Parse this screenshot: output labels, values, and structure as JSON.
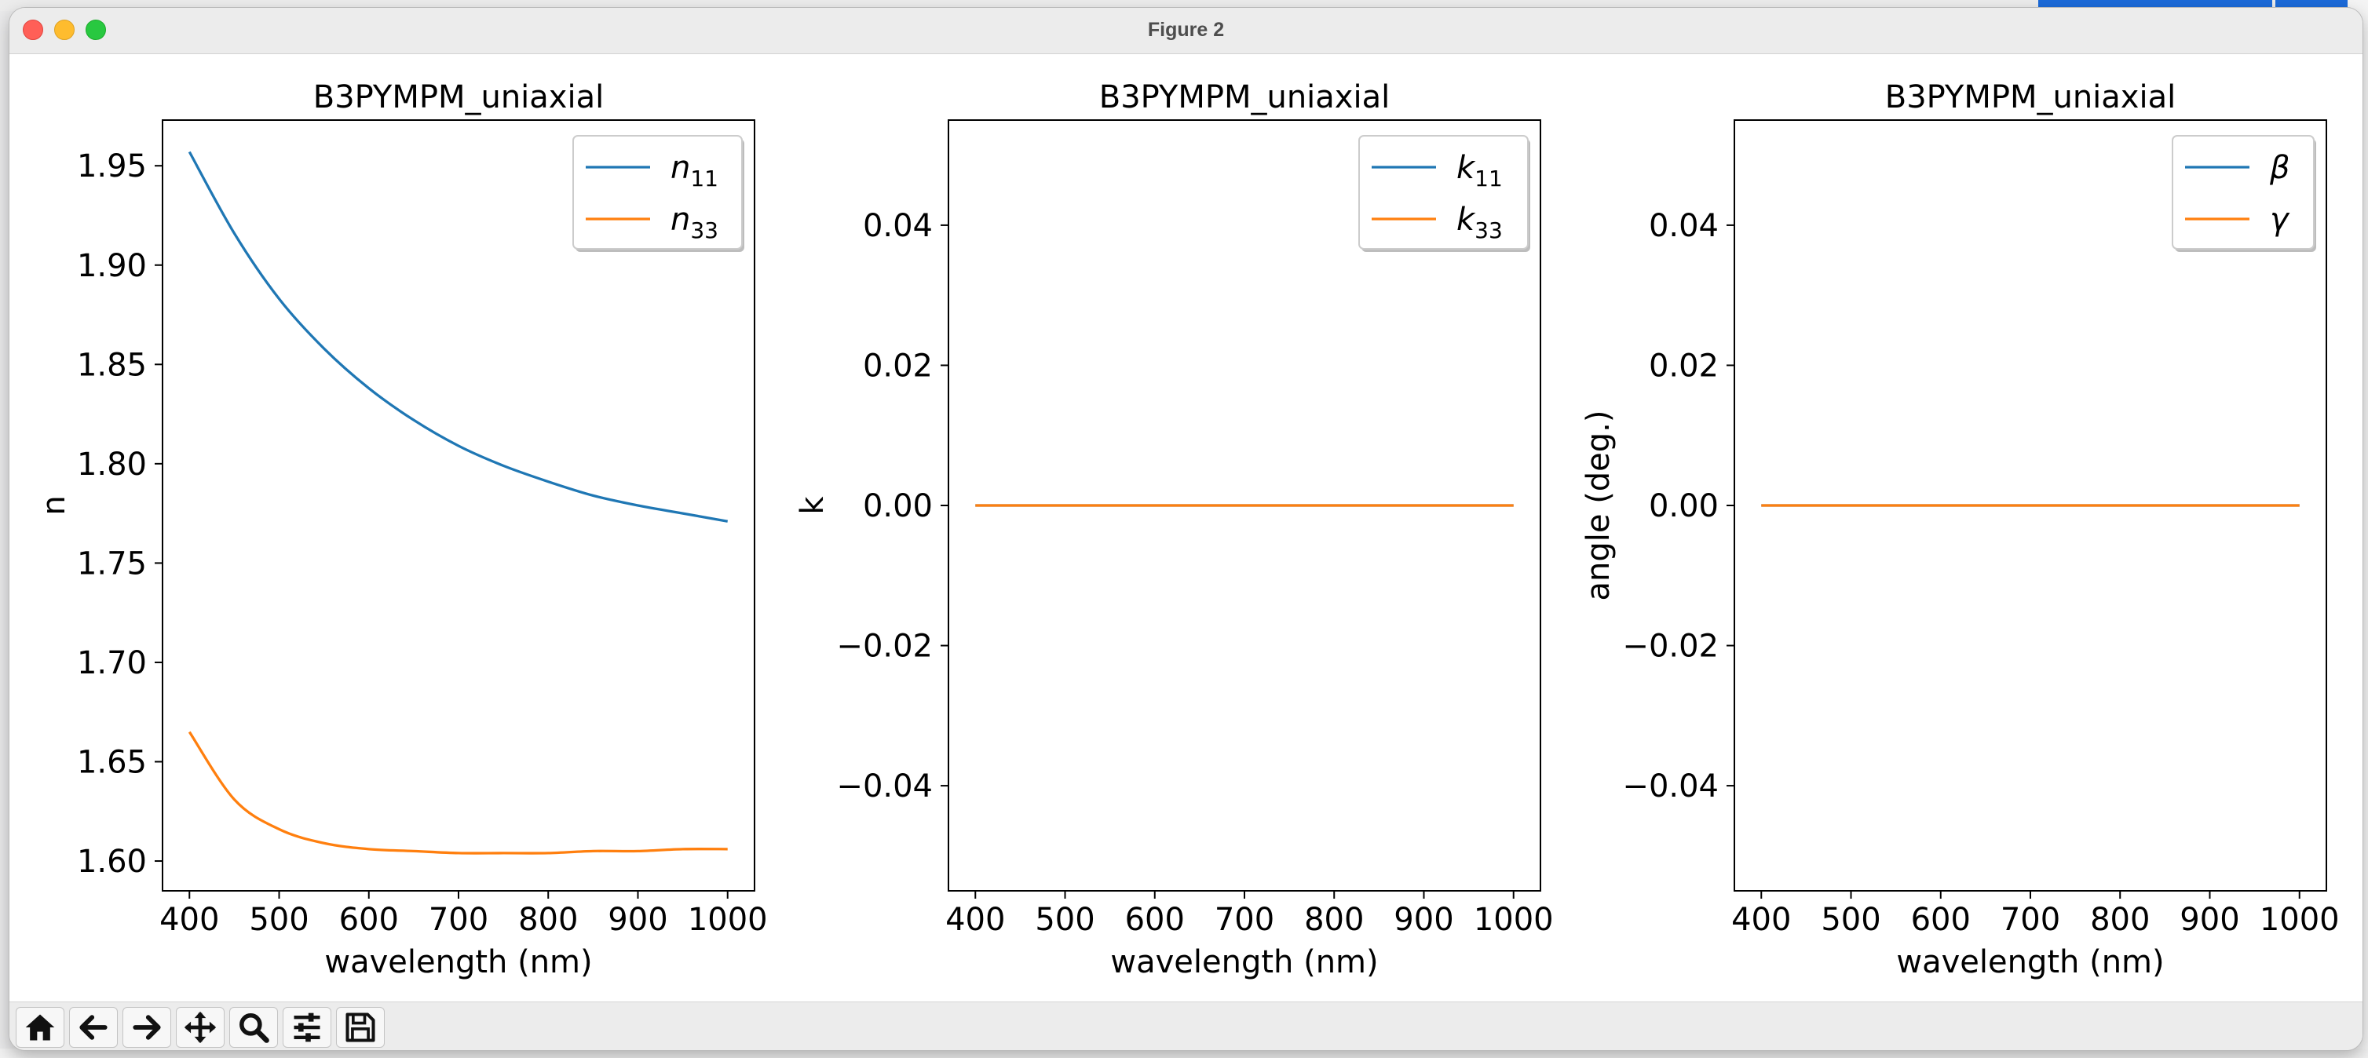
{
  "window": {
    "title": "Figure 2"
  },
  "toolbar": {
    "buttons": [
      {
        "name": "home-button",
        "icon": "home-icon"
      },
      {
        "name": "back-button",
        "icon": "arrow-left-icon"
      },
      {
        "name": "forward-button",
        "icon": "arrow-right-icon"
      },
      {
        "name": "pan-button",
        "icon": "move-icon"
      },
      {
        "name": "zoom-button",
        "icon": "magnifier-icon"
      },
      {
        "name": "configure-subplots-button",
        "icon": "sliders-icon"
      },
      {
        "name": "save-button",
        "icon": "floppy-disk-icon"
      }
    ]
  },
  "colors": {
    "series1": "#1f77b4",
    "series2": "#ff7f0e"
  },
  "chart_data": [
    {
      "type": "line",
      "title": "B3PYMPM_uniaxial",
      "xlabel": "wavelength (nm)",
      "ylabel": "n",
      "xlim": [
        370,
        1030
      ],
      "ylim": [
        1.585,
        1.973
      ],
      "xticks": [
        400,
        500,
        600,
        700,
        800,
        900,
        1000
      ],
      "yticks": [
        1.6,
        1.65,
        1.7,
        1.75,
        1.8,
        1.85,
        1.9,
        1.95
      ],
      "ytick_labels": [
        "1.60",
        "1.65",
        "1.70",
        "1.75",
        "1.80",
        "1.85",
        "1.90",
        "1.95"
      ],
      "legend_position": "upper right",
      "x": [
        400,
        450,
        500,
        550,
        600,
        650,
        700,
        750,
        800,
        850,
        900,
        950,
        1000
      ],
      "series": [
        {
          "name": "n11",
          "label_main": "n",
          "label_sub": "11",
          "color": "#1f77b4",
          "values": [
            1.957,
            1.916,
            1.883,
            1.858,
            1.838,
            1.822,
            1.809,
            1.799,
            1.791,
            1.784,
            1.779,
            1.775,
            1.771
          ]
        },
        {
          "name": "n33",
          "label_main": "n",
          "label_sub": "33",
          "color": "#ff7f0e",
          "values": [
            1.665,
            1.631,
            1.616,
            1.609,
            1.606,
            1.605,
            1.604,
            1.604,
            1.604,
            1.605,
            1.605,
            1.606,
            1.606
          ]
        }
      ]
    },
    {
      "type": "line",
      "title": "B3PYMPM_uniaxial",
      "xlabel": "wavelength (nm)",
      "ylabel": "k",
      "xlim": [
        370,
        1030
      ],
      "ylim": [
        -0.055,
        0.055
      ],
      "xticks": [
        400,
        500,
        600,
        700,
        800,
        900,
        1000
      ],
      "yticks": [
        -0.04,
        -0.02,
        0.0,
        0.02,
        0.04
      ],
      "ytick_labels": [
        "−0.04",
        "−0.02",
        "0.00",
        "0.02",
        "0.04"
      ],
      "legend_position": "upper right",
      "x": [
        400,
        1000
      ],
      "series": [
        {
          "name": "k11",
          "label_main": "k",
          "label_sub": "11",
          "color": "#1f77b4",
          "values": [
            0,
            0
          ]
        },
        {
          "name": "k33",
          "label_main": "k",
          "label_sub": "33",
          "color": "#ff7f0e",
          "values": [
            0,
            0
          ]
        }
      ]
    },
    {
      "type": "line",
      "title": "B3PYMPM_uniaxial",
      "xlabel": "wavelength (nm)",
      "ylabel": "angle (deg.)",
      "xlim": [
        370,
        1030
      ],
      "ylim": [
        -0.055,
        0.055
      ],
      "xticks": [
        400,
        500,
        600,
        700,
        800,
        900,
        1000
      ],
      "yticks": [
        -0.04,
        -0.02,
        0.0,
        0.02,
        0.04
      ],
      "ytick_labels": [
        "−0.04",
        "−0.02",
        "0.00",
        "0.02",
        "0.04"
      ],
      "legend_position": "upper right",
      "x": [
        400,
        1000
      ],
      "series": [
        {
          "name": "β",
          "label_main": "β",
          "label_sub": "",
          "color": "#1f77b4",
          "values": [
            0,
            0
          ]
        },
        {
          "name": "γ",
          "label_main": "γ",
          "label_sub": "",
          "color": "#ff7f0e",
          "values": [
            0,
            0
          ]
        }
      ]
    }
  ]
}
